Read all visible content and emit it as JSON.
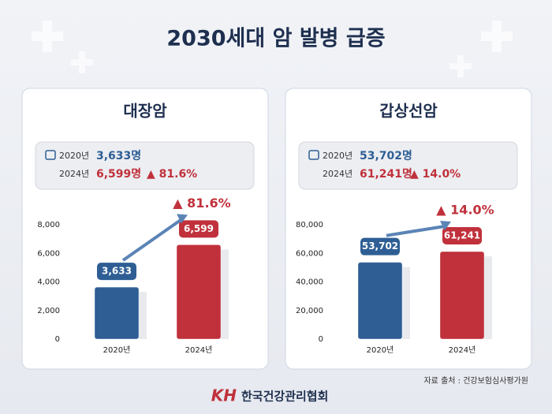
{
  "title": "2030세대 암 발병 급증",
  "chart_data": [
    {
      "type": "bar",
      "title": "대장암",
      "summary": {
        "rows": [
          {
            "year": "2020년",
            "value": "3,633명"
          },
          {
            "year": "2024년",
            "value": "6,599명",
            "change": "▲ 81.6%"
          }
        ]
      },
      "annotation": "▲ 81.6%",
      "categories": [
        "2020년",
        "2024년"
      ],
      "values": [
        3633,
        6599
      ],
      "value_labels": [
        "3,633",
        "6,599"
      ],
      "colors": [
        "#2e5e94",
        "#c0313b"
      ],
      "ylim": [
        0,
        8000
      ],
      "yticks": [
        0,
        {
          "value": 2000,
          "label": "2,000"
        },
        {
          "value": 4000,
          "label": "4,000"
        },
        {
          "value": 6000,
          "label": "6,000"
        },
        {
          "value": 8000,
          "label": "8,000"
        }
      ]
    },
    {
      "type": "bar",
      "title": "갑상선암",
      "summary": {
        "rows": [
          {
            "year": "2020년",
            "value": "53,702명"
          },
          {
            "year": "2024년",
            "value": "61,241명",
            "change": "▲ 14.0%"
          }
        ]
      },
      "annotation": "▲ 14.0%",
      "categories": [
        "2020년",
        "2024년"
      ],
      "values": [
        53702,
        61241
      ],
      "value_labels": [
        "53,702",
        "61,241"
      ],
      "colors": [
        "#2e5e94",
        "#c0313b"
      ],
      "ylim": [
        0,
        80000
      ],
      "yticks": [
        0,
        {
          "value": 20000,
          "label": "20,000"
        },
        {
          "value": 40000,
          "label": "40,000"
        },
        {
          "value": 60000,
          "label": "60,000"
        },
        {
          "value": 80000,
          "label": "80,000"
        }
      ]
    }
  ],
  "source": "자료 출처 : 건강보험심사평가원",
  "logo": {
    "mark": "KH",
    "name": "한국건강관리협회"
  }
}
